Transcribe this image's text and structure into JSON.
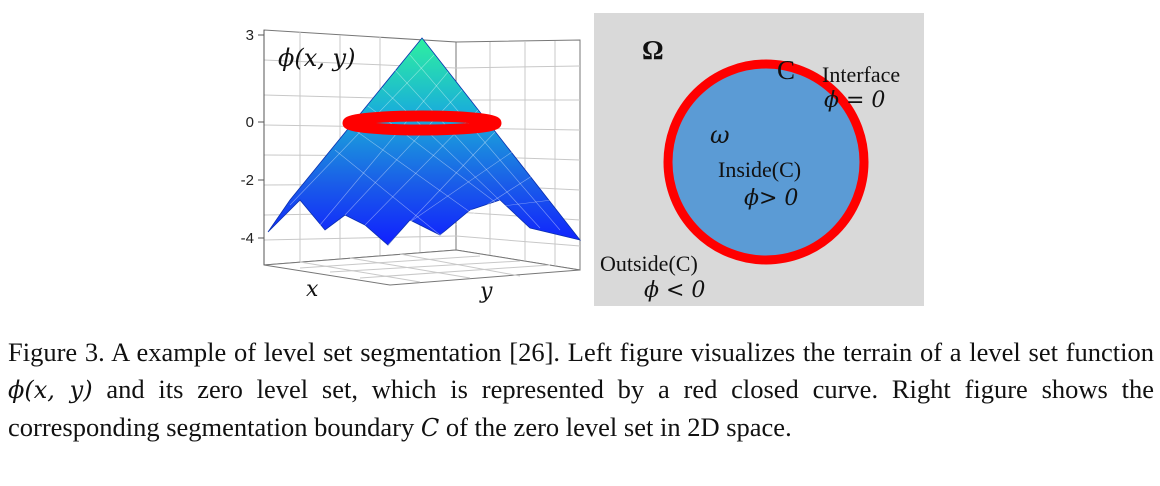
{
  "left_plot": {
    "surface_label": "ϕ(x, y)",
    "z_ticks": [
      "3",
      "0",
      "-2",
      "-4"
    ],
    "x_label": "x",
    "y_label": "y"
  },
  "right_plot": {
    "omega_label": "Ω",
    "curve_label": "C",
    "interface_label": "Interface",
    "interface_eq": "ϕ = 0",
    "inner_symbol": "ω",
    "inside_label": "Inside(C)",
    "inside_eq": "ϕ> 0",
    "outside_label": "Outside(C)",
    "outside_eq": "ϕ < 0",
    "colors": {
      "background": "#d9d9d9",
      "region": "#5b9bd5",
      "boundary": "#ff0000"
    }
  },
  "caption": {
    "p1": "Figure 3. A example of level set segmentation [26]. Left figure visualizes the terrain of a level set function ",
    "m1": "ϕ(x, y)",
    "p2": " and its zero level set, which is represented by a red closed curve. Right figure shows the corresponding segmentation boundary ",
    "m2": "C",
    "p3": " of the zero level set in 2D space."
  }
}
